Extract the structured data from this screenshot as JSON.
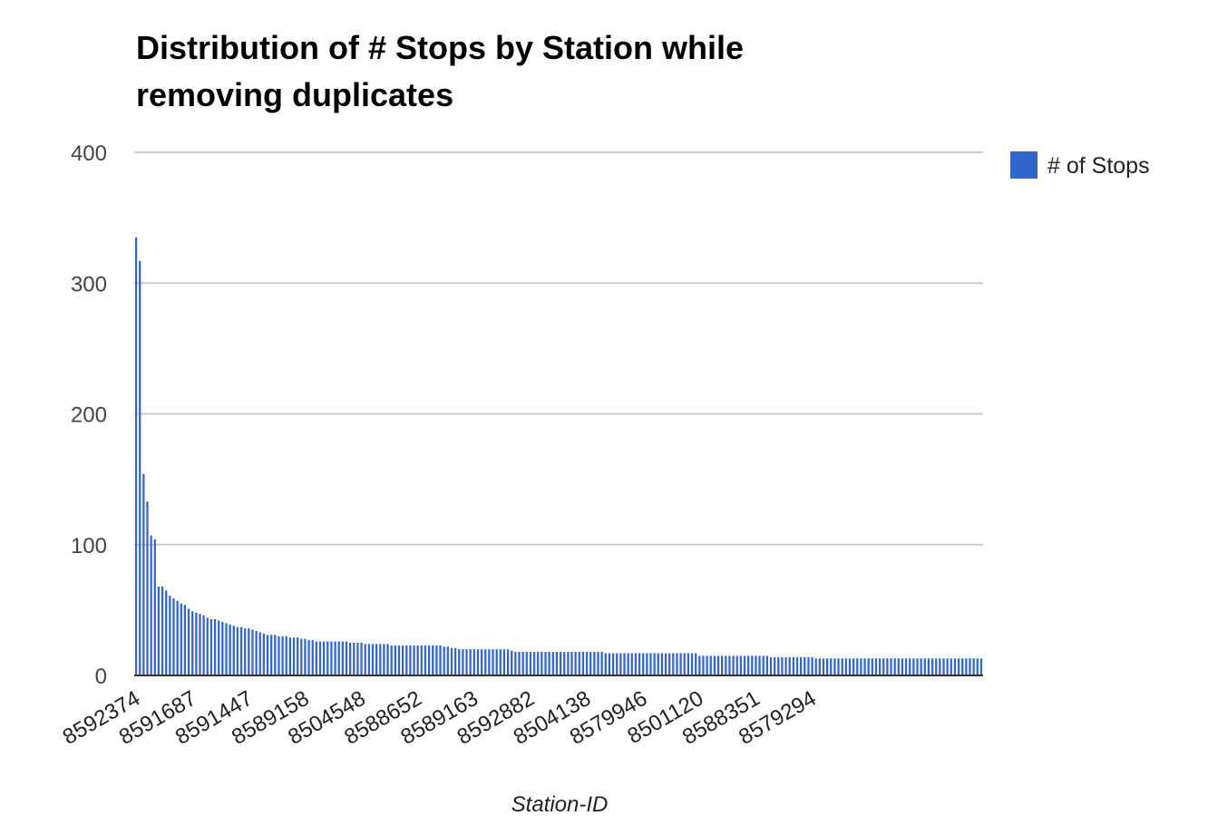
{
  "chart_data": {
    "type": "bar",
    "title_lines": [
      "Distribution of # Stops by Station while",
      "removing duplicates"
    ],
    "xlabel": "Station-ID",
    "ylabel": "",
    "ylim": [
      0,
      400
    ],
    "yticks": [
      0,
      100,
      200,
      300,
      400
    ],
    "grid": true,
    "legend_position": "right",
    "colors": {
      "bar": "#3366cc",
      "grid": "#cccccc",
      "axis": "#333333"
    },
    "x_tick_labels": [
      "8592374",
      "8591687",
      "8591447",
      "8589158",
      "8504548",
      "8588652",
      "8589163",
      "8592882",
      "8504138",
      "8579946",
      "8501120",
      "8588351",
      "8579294"
    ],
    "x_tick_every": 15,
    "series": [
      {
        "name": "# of Stops",
        "values": [
          335,
          317,
          154,
          133,
          107,
          104,
          68,
          68,
          65,
          61,
          59,
          57,
          55,
          54,
          51,
          49,
          48,
          47,
          46,
          44,
          43,
          43,
          42,
          41,
          40,
          39,
          38,
          37,
          37,
          36,
          36,
          35,
          34,
          33,
          32,
          31,
          31,
          31,
          30,
          30,
          30,
          29,
          29,
          29,
          28,
          28,
          27,
          27,
          26,
          26,
          26,
          26,
          26,
          26,
          26,
          26,
          26,
          25,
          25,
          25,
          25,
          24,
          24,
          24,
          24,
          24,
          24,
          24,
          23,
          23,
          23,
          23,
          23,
          23,
          23,
          23,
          23,
          23,
          23,
          23,
          23,
          23,
          22,
          22,
          21,
          21,
          20,
          20,
          20,
          20,
          20,
          20,
          20,
          20,
          20,
          20,
          20,
          20,
          20,
          20,
          19,
          18,
          18,
          18,
          18,
          18,
          18,
          18,
          18,
          18,
          18,
          18,
          18,
          18,
          18,
          18,
          18,
          18,
          18,
          18,
          18,
          18,
          18,
          18,
          18,
          17,
          17,
          17,
          17,
          17,
          17,
          17,
          17,
          17,
          17,
          17,
          17,
          17,
          17,
          17,
          17,
          17,
          17,
          17,
          17,
          17,
          17,
          17,
          17,
          17,
          15,
          15,
          15,
          15,
          15,
          15,
          15,
          15,
          15,
          15,
          15,
          15,
          15,
          15,
          15,
          15,
          15,
          15,
          15,
          14,
          14,
          14,
          14,
          14,
          14,
          14,
          14,
          14,
          14,
          14,
          14,
          13,
          13,
          13,
          13,
          13,
          13,
          13,
          13,
          13,
          13,
          13,
          13,
          13,
          13,
          13,
          13,
          13,
          13,
          13,
          13,
          13,
          13,
          13,
          13,
          13,
          13,
          13,
          13,
          13,
          13,
          13,
          13,
          13,
          13,
          13,
          13,
          13,
          13,
          13,
          13,
          13,
          13,
          13,
          13,
          13
        ]
      }
    ]
  }
}
